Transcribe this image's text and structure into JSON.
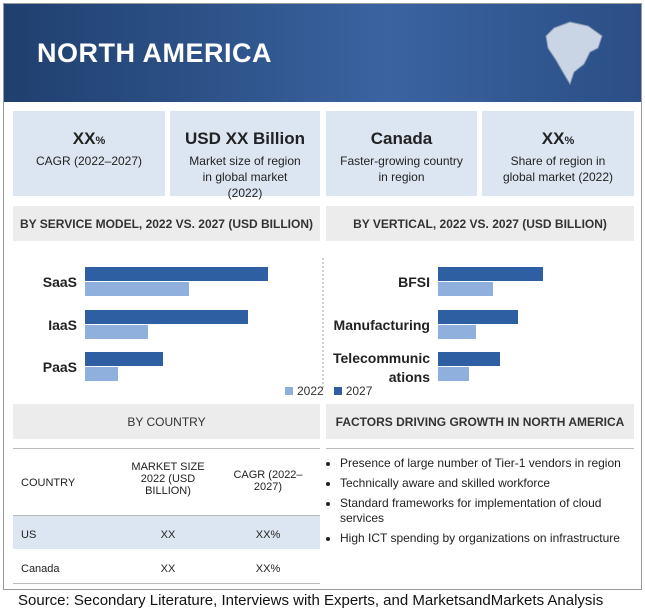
{
  "header": {
    "title": "NORTH AMERICA"
  },
  "stats": [
    {
      "value": "XX",
      "unit": "%",
      "label": "CAGR (2022–2027)"
    },
    {
      "value": "USD XX Billion",
      "label": "Market size of region in global market (2022)"
    },
    {
      "value": "Canada",
      "label": "Faster-growing country in region"
    },
    {
      "value": "XX",
      "unit": "%",
      "label": "Share of region in global market (2022)"
    }
  ],
  "chart_data": [
    {
      "type": "bar",
      "title": "BY SERVICE MODEL, 2022 VS. 2027 (USD BILLION)",
      "categories": [
        "SaaS",
        "IaaS",
        "PaaS"
      ],
      "xlim": [
        0,
        200
      ],
      "series": [
        {
          "name": "2022",
          "color": "#8fb0dc",
          "values": [
            104,
            63,
            33
          ]
        },
        {
          "name": "2027",
          "color": "#2e5fa3",
          "values": [
            183,
            163,
            78
          ]
        }
      ]
    },
    {
      "type": "bar",
      "title": "BY VERTICAL, 2022 VS. 2027 (USD BILLION)",
      "categories": [
        "BFSI",
        "Manufacturing",
        "Telecommunications"
      ],
      "xlim": [
        0,
        200
      ],
      "series": [
        {
          "name": "2022",
          "color": "#8fb0dc",
          "values": [
            55,
            38,
            31
          ]
        },
        {
          "name": "2027",
          "color": "#2e5fa3",
          "values": [
            105,
            80,
            62
          ]
        }
      ]
    }
  ],
  "country_table": {
    "title": "BY COUNTRY",
    "columns": [
      "COUNTRY",
      "MARKET SIZE 2022 (USD BILLION)",
      "CAGR (2022–2027)"
    ],
    "rows": [
      [
        "US",
        "XX",
        "XX%"
      ],
      [
        "Canada",
        "XX",
        "XX%"
      ]
    ]
  },
  "factors": {
    "title": "FACTORS DRIVING GROWTH IN NORTH AMERICA",
    "items": [
      "Presence of large number of Tier-1 vendors in region",
      "Technically aware and skilled workforce",
      "Standard frameworks for implementation of cloud services",
      "High ICT spending by organizations on infrastructure"
    ]
  },
  "source": "Source: Secondary Literature, Interviews with Experts, and MarketsandMarkets Analysis"
}
